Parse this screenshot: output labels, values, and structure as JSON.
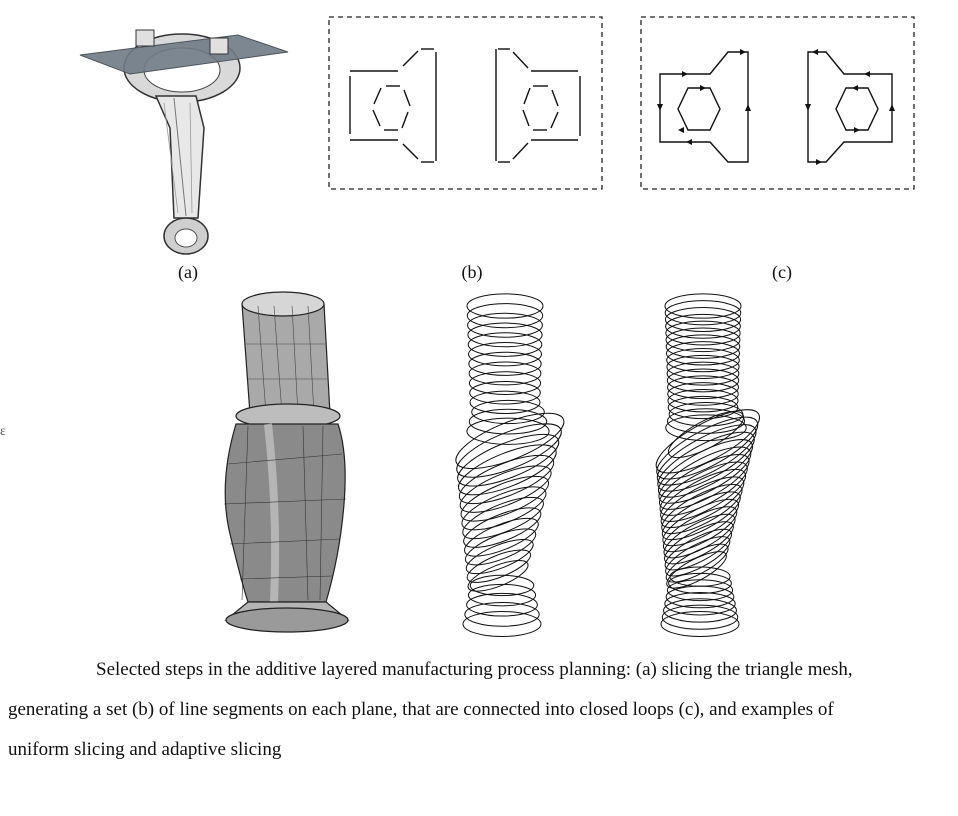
{
  "figure": {
    "panels": [
      {
        "id": "a",
        "label": "(a)"
      },
      {
        "id": "b",
        "label": "(b)"
      },
      {
        "id": "c",
        "label": "(c)"
      }
    ],
    "stray_mark": "ε",
    "caption": {
      "line1": "Selected steps in the additive layered manufacturing process planning: (a) slicing the triangle mesh,",
      "line2": "generating a set (b) of line segments on each plane, that are connected into closed loops (c), and examples of",
      "line3": "uniform slicing and adaptive slicing"
    }
  },
  "colors": {
    "mesh_fill": "#8a8a8a",
    "mesh_light": "#c8c8c8",
    "plane": "#6f7a85",
    "line": "#111111",
    "dash": "#222222"
  }
}
